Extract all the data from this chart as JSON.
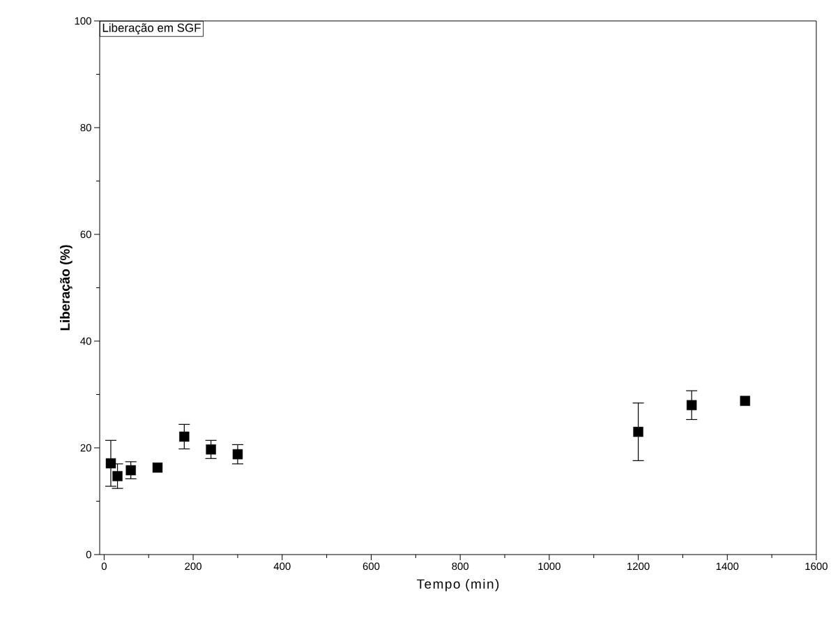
{
  "chart_data": {
    "type": "scatter",
    "title": "Liberação em SGF",
    "xlabel": "Tempo (min)",
    "ylabel": "Liberação (%)",
    "x": [
      15,
      30,
      60,
      120,
      180,
      240,
      300,
      1200,
      1320,
      1440
    ],
    "values": [
      17.1,
      14.7,
      15.8,
      16.3,
      22.1,
      19.7,
      18.8,
      23.0,
      28.0,
      28.8
    ],
    "errors": [
      4.3,
      2.3,
      1.6,
      null,
      2.3,
      1.7,
      1.8,
      5.4,
      2.7,
      null
    ],
    "color": "#000000",
    "marker": "square",
    "grid": false,
    "xlim": [
      -10,
      1600
    ],
    "ylim": [
      0,
      100
    ],
    "xticks": [
      0,
      200,
      400,
      600,
      800,
      1000,
      1200,
      1400,
      1600
    ],
    "yticks": [
      0,
      20,
      40,
      60,
      80,
      100
    ]
  }
}
